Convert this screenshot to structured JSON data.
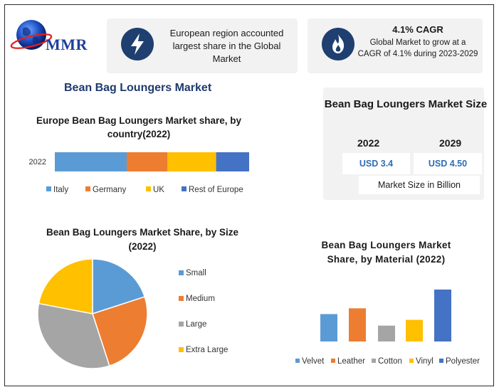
{
  "brand": {
    "logo_text": "MMR"
  },
  "highlights": {
    "region_text": "European region accounted largest share in the Global Market",
    "cagr_title": "4.1% CAGR",
    "cagr_text": "Global Market to grow at a CAGR of 4.1% during 2023-2029"
  },
  "main_title": "Bean Bag Loungers Market",
  "market_size": {
    "title": "Bean Bag Loungers Market Size",
    "years": [
      "2022",
      "2029"
    ],
    "values": [
      "USD 3.4",
      "USD 4.50"
    ],
    "note": "Market Size in Billion",
    "value_color": "#2e6db4"
  },
  "chart_data": [
    {
      "type": "bar",
      "orientation": "horizontal-stacked",
      "title": "Europe Bean Bag Loungers Market share, by country(2022)",
      "categories": [
        "2022"
      ],
      "series": [
        {
          "name": "Italy",
          "values": [
            37
          ],
          "color": "#5b9bd5"
        },
        {
          "name": "Germany",
          "values": [
            21
          ],
          "color": "#ed7d31"
        },
        {
          "name": "UK",
          "values": [
            25
          ],
          "color": "#ffc000"
        },
        {
          "name": "Rest of Europe",
          "values": [
            17
          ],
          "color": "#4472c4"
        }
      ],
      "legend": "bottom"
    },
    {
      "type": "pie",
      "title": "Bean Bag Loungers Market Share, by Size (2022)",
      "labels": [
        "Small",
        "Medium",
        "Large",
        "Extra Large"
      ],
      "values": [
        20,
        25,
        33,
        22
      ],
      "colors": [
        "#5b9bd5",
        "#ed7d31",
        "#a5a5a5",
        "#ffc000"
      ],
      "legend": "right"
    },
    {
      "type": "bar",
      "title": "Bean Bag Loungers Market Share, by Material (2022)",
      "categories": [
        "Velvet",
        "Leather",
        "Cotton",
        "Vinyl",
        "Polyester"
      ],
      "values": [
        38,
        46,
        22,
        30,
        72
      ],
      "colors": [
        "#5b9bd5",
        "#ed7d31",
        "#a5a5a5",
        "#ffc000",
        "#4472c4"
      ],
      "legend": "bottom"
    }
  ]
}
